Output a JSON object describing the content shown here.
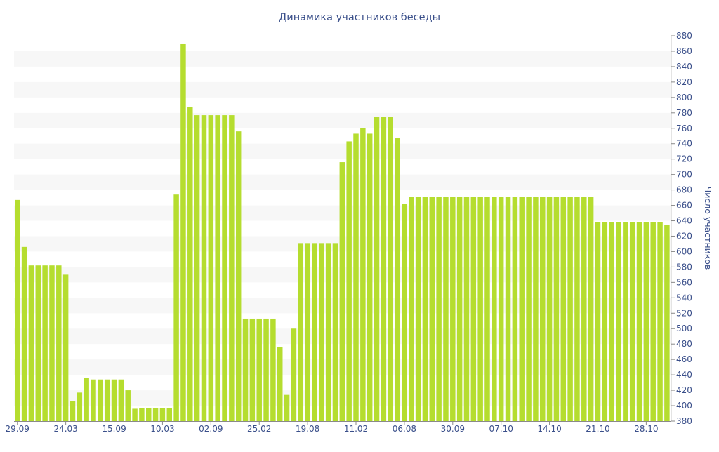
{
  "chart_data": {
    "type": "bar",
    "title": "Динамика участников беседы",
    "xlabel": "",
    "ylabel": "Число участников",
    "ylim": [
      380,
      880
    ],
    "y_tick_step": 20,
    "y_axis_side": "right",
    "grid": "alternating-bands",
    "bar_color": "#b5dd2f",
    "band_color": "#f7f7f7",
    "text_color": "#3a4f8a",
    "x_tick_labels": [
      {
        "index": 0,
        "label": "29.09"
      },
      {
        "index": 7,
        "label": "24.03"
      },
      {
        "index": 14,
        "label": "15.09"
      },
      {
        "index": 21,
        "label": "10.03"
      },
      {
        "index": 28,
        "label": "02.09"
      },
      {
        "index": 35,
        "label": "25.02"
      },
      {
        "index": 42,
        "label": "19.08"
      },
      {
        "index": 49,
        "label": "11.02"
      },
      {
        "index": 56,
        "label": "06.08"
      },
      {
        "index": 63,
        "label": "30.09"
      },
      {
        "index": 70,
        "label": "07.10"
      },
      {
        "index": 77,
        "label": "14.10"
      },
      {
        "index": 84,
        "label": "21.10"
      },
      {
        "index": 91,
        "label": "28.10"
      }
    ],
    "values": [
      667,
      606,
      582,
      582,
      582,
      582,
      582,
      570,
      406,
      417,
      436,
      434,
      434,
      434,
      434,
      434,
      420,
      396,
      397,
      397,
      397,
      397,
      397,
      674,
      870,
      788,
      777,
      777,
      777,
      777,
      777,
      777,
      756,
      513,
      513,
      513,
      513,
      513,
      476,
      414,
      500,
      611,
      611,
      611,
      611,
      611,
      611,
      716,
      743,
      753,
      760,
      753,
      775,
      775,
      775,
      747,
      662,
      671,
      671,
      671,
      671,
      671,
      671,
      671,
      671,
      671,
      671,
      671,
      671,
      671,
      671,
      671,
      671,
      671,
      671,
      671,
      671,
      671,
      671,
      671,
      671,
      671,
      671,
      671,
      638,
      638,
      638,
      638,
      638,
      638,
      638,
      638,
      638,
      638,
      635
    ]
  }
}
